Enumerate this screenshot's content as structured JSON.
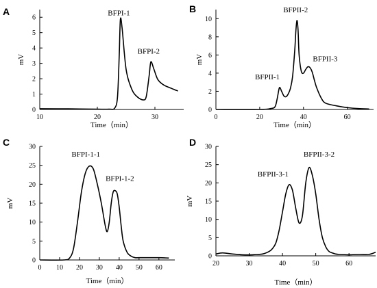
{
  "chart_data": [
    {
      "panel": "A",
      "type": "line",
      "xlabel": "Time（min）",
      "ylabel": "mV",
      "xlim": [
        10,
        35
      ],
      "ylim": [
        0,
        6.5
      ],
      "xticks": [
        10,
        20,
        30
      ],
      "yticks": [
        0,
        1,
        2,
        3,
        4,
        5,
        6
      ],
      "x": [
        10,
        15,
        20,
        22,
        23,
        23.5,
        23.8,
        24,
        24.3,
        25,
        26,
        27,
        28,
        28.5,
        29,
        29.3,
        29.8,
        30.5,
        31.5,
        33,
        34
      ],
      "y": [
        0.05,
        0.04,
        0.02,
        0.02,
        0.08,
        0.8,
        3.5,
        5.85,
        5.3,
        2.6,
        1.3,
        0.8,
        0.62,
        0.85,
        2.2,
        3.1,
        2.65,
        1.95,
        1.6,
        1.35,
        1.2
      ],
      "annotations": [
        {
          "text": "BFPI-1",
          "x": 24.2,
          "y": 5.85
        },
        {
          "text": "BFPI-2",
          "x": 29.6,
          "y": 3.1
        }
      ]
    },
    {
      "panel": "B",
      "type": "line",
      "xlabel": "Time（min）",
      "ylabel": "mV",
      "xlim": [
        0,
        72
      ],
      "ylim": [
        0,
        11
      ],
      "xticks": [
        0,
        20,
        40,
        60
      ],
      "yticks": [
        0,
        2,
        4,
        6,
        8,
        10
      ],
      "x": [
        0,
        20,
        25,
        27,
        28,
        29,
        30,
        31,
        32,
        33,
        34,
        35,
        36,
        36.5,
        37,
        37.5,
        38,
        39,
        40,
        41,
        42,
        43,
        44,
        45,
        46,
        48,
        50,
        55,
        60,
        65,
        70
      ],
      "y": [
        0,
        0,
        0.1,
        0.3,
        1.2,
        2.4,
        2.0,
        1.5,
        1.4,
        1.7,
        2.3,
        3.6,
        6.5,
        8.6,
        9.8,
        8.8,
        6.0,
        4.2,
        4.0,
        4.4,
        4.7,
        4.6,
        4.1,
        3.2,
        2.4,
        1.3,
        0.7,
        0.4,
        0.2,
        0.1,
        0.05
      ],
      "annotations": [
        {
          "text": "BFPII-1",
          "x": 28.5,
          "y": 2.4
        },
        {
          "text": "BFPII-2",
          "x": 37,
          "y": 9.8
        },
        {
          "text": "BFPII-3",
          "x": 43,
          "y": 4.7
        }
      ]
    },
    {
      "panel": "C",
      "type": "line",
      "xlabel": "Time（min）",
      "ylabel": "mV",
      "xlim": [
        0,
        68
      ],
      "ylim": [
        0,
        30
      ],
      "xticks": [
        0,
        10,
        20,
        30,
        40,
        50,
        60
      ],
      "yticks": [
        0,
        5,
        10,
        15,
        20,
        25,
        30
      ],
      "x": [
        0,
        12,
        15,
        17,
        19,
        21,
        23,
        25,
        27,
        29,
        31,
        33,
        34,
        35,
        36,
        37,
        38,
        39,
        40,
        41,
        42,
        44,
        46,
        48,
        50,
        55,
        60,
        65
      ],
      "y": [
        0,
        0,
        0.5,
        3,
        10,
        18,
        23,
        24.8,
        24,
        20,
        15,
        9,
        7.5,
        10,
        15,
        18,
        18.3,
        17.5,
        14,
        9,
        5,
        2,
        1,
        0.6,
        0.6,
        0.6,
        0.6,
        0.5
      ],
      "annotations": [
        {
          "text": "BFPI-1-1",
          "x": 25,
          "y": 24.8
        },
        {
          "text": "BFPI-1-2",
          "x": 38,
          "y": 18.3
        }
      ]
    },
    {
      "panel": "D",
      "type": "line",
      "xlabel": "Time（min）",
      "ylabel": "mV",
      "xlim": [
        20,
        68
      ],
      "ylim": [
        0,
        30
      ],
      "xticks": [
        20,
        30,
        40,
        50,
        60
      ],
      "yticks": [
        0,
        5,
        10,
        15,
        20,
        25,
        30
      ],
      "x": [
        20,
        22,
        25,
        28,
        31,
        34,
        36,
        37,
        38,
        39,
        40,
        41,
        42,
        43,
        44,
        45,
        46,
        47,
        48,
        49,
        50,
        51,
        52,
        53,
        54,
        55,
        56,
        57,
        60,
        63,
        66,
        68
      ],
      "y": [
        0.5,
        0.8,
        0.5,
        0.3,
        0.3,
        0.5,
        1.2,
        2.0,
        3.5,
        7,
        12,
        17,
        19.5,
        18,
        13,
        9,
        11,
        20,
        24.2,
        22,
        17,
        10,
        5,
        2.5,
        1.2,
        0.8,
        0.5,
        0.4,
        0.3,
        0.4,
        0.4,
        1.0
      ],
      "annotations": [
        {
          "text": "BFPII-3-1",
          "x": 42,
          "y": 19.5
        },
        {
          "text": "BFPII-3-2",
          "x": 48,
          "y": 24.2
        }
      ]
    }
  ]
}
